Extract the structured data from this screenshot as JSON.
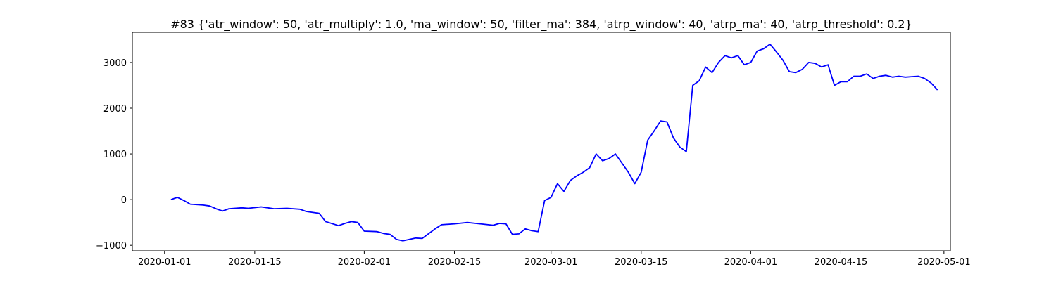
{
  "chart_data": {
    "type": "line",
    "title": "#83 {'atr_window': 50, 'atr_multiply': 1.0, 'ma_window': 50, 'filter_ma': 384, 'atrp_window': 40, 'atrp_ma': 40, 'atrp_threshold': 0.2}",
    "xlabel": "",
    "ylabel": "",
    "x_type": "date",
    "xlim": [
      "2019-12-27",
      "2020-05-02"
    ],
    "ylim": [
      -1120,
      3660
    ],
    "grid": false,
    "legend": "none",
    "x_ticks": [
      "2020-01-01",
      "2020-01-15",
      "2020-02-01",
      "2020-02-15",
      "2020-03-01",
      "2020-03-15",
      "2020-04-01",
      "2020-04-15",
      "2020-05-01"
    ],
    "y_ticks": [
      -1000,
      0,
      1000,
      2000,
      3000
    ],
    "y_tick_labels": [
      "−1000",
      "0",
      "1000",
      "2000",
      "3000"
    ],
    "series": [
      {
        "color": "#0000ff",
        "x": [
          "2020-01-02",
          "2020-01-03",
          "2020-01-04",
          "2020-01-05",
          "2020-01-07",
          "2020-01-08",
          "2020-01-09",
          "2020-01-10",
          "2020-01-11",
          "2020-01-13",
          "2020-01-14",
          "2020-01-16",
          "2020-01-18",
          "2020-01-20",
          "2020-01-22",
          "2020-01-23",
          "2020-01-25",
          "2020-01-26",
          "2020-01-28",
          "2020-01-29",
          "2020-01-30",
          "2020-01-31",
          "2020-02-01",
          "2020-02-03",
          "2020-02-04",
          "2020-02-05",
          "2020-02-06",
          "2020-02-07",
          "2020-02-09",
          "2020-02-10",
          "2020-02-12",
          "2020-02-13",
          "2020-02-15",
          "2020-02-17",
          "2020-02-19",
          "2020-02-21",
          "2020-02-22",
          "2020-02-23",
          "2020-02-24",
          "2020-02-25",
          "2020-02-26",
          "2020-02-27",
          "2020-02-28",
          "2020-02-29",
          "2020-03-01",
          "2020-03-02",
          "2020-03-03",
          "2020-03-04",
          "2020-03-05",
          "2020-03-06",
          "2020-03-07",
          "2020-03-08",
          "2020-03-09",
          "2020-03-10",
          "2020-03-11",
          "2020-03-12",
          "2020-03-13",
          "2020-03-14",
          "2020-03-15",
          "2020-03-16",
          "2020-03-17",
          "2020-03-18",
          "2020-03-19",
          "2020-03-20",
          "2020-03-21",
          "2020-03-22",
          "2020-03-23",
          "2020-03-24",
          "2020-03-25",
          "2020-03-26",
          "2020-03-27",
          "2020-03-28",
          "2020-03-29",
          "2020-03-30",
          "2020-03-31",
          "2020-04-01",
          "2020-04-02",
          "2020-04-03",
          "2020-04-04",
          "2020-04-05",
          "2020-04-06",
          "2020-04-07",
          "2020-04-08",
          "2020-04-09",
          "2020-04-10",
          "2020-04-11",
          "2020-04-12",
          "2020-04-13",
          "2020-04-14",
          "2020-04-15",
          "2020-04-16",
          "2020-04-17",
          "2020-04-18",
          "2020-04-19",
          "2020-04-20",
          "2020-04-21",
          "2020-04-22",
          "2020-04-23",
          "2020-04-24",
          "2020-04-25",
          "2020-04-26",
          "2020-04-27",
          "2020-04-28",
          "2020-04-29",
          "2020-04-30"
        ],
        "y": [
          0,
          50,
          -20,
          -100,
          -120,
          -140,
          -200,
          -250,
          -200,
          -180,
          -190,
          -160,
          -200,
          -190,
          -210,
          -260,
          -300,
          -480,
          -570,
          -520,
          -480,
          -500,
          -690,
          -700,
          -740,
          -760,
          -870,
          -900,
          -840,
          -850,
          -640,
          -550,
          -530,
          -500,
          -530,
          -560,
          -520,
          -530,
          -760,
          -750,
          -640,
          -680,
          -700,
          -20,
          50,
          350,
          180,
          420,
          520,
          600,
          700,
          1000,
          850,
          900,
          1000,
          800,
          600,
          350,
          600,
          1300,
          1500,
          1720,
          1700,
          1350,
          1150,
          1050,
          2500,
          2600,
          2900,
          2780,
          3000,
          3150,
          3100,
          3150,
          2950,
          3000,
          3250,
          3300,
          3400,
          3230,
          3050,
          2800,
          2780,
          2850,
          3000,
          2980,
          2900,
          2950,
          2500,
          2580,
          2580,
          2700,
          2700,
          2750,
          2650,
          2700,
          2720,
          2680,
          2700,
          2680,
          2690,
          2700,
          2650,
          2550,
          2400
        ]
      }
    ]
  }
}
